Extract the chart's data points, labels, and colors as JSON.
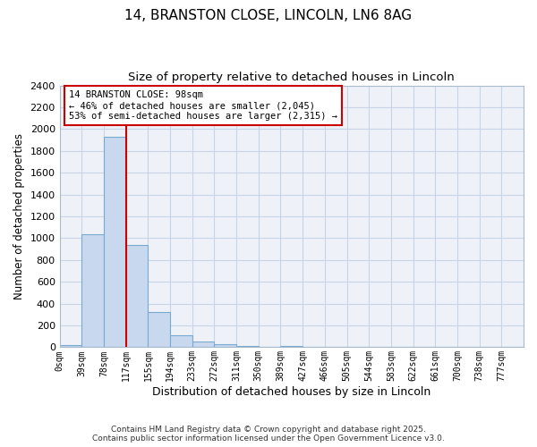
{
  "title_line1": "14, BRANSTON CLOSE, LINCOLN, LN6 8AG",
  "title_line2": "Size of property relative to detached houses in Lincoln",
  "xlabel": "Distribution of detached houses by size in Lincoln",
  "ylabel": "Number of detached properties",
  "bar_labels": [
    "0sqm",
    "39sqm",
    "78sqm",
    "117sqm",
    "155sqm",
    "194sqm",
    "233sqm",
    "272sqm",
    "311sqm",
    "350sqm",
    "389sqm",
    "427sqm",
    "466sqm",
    "505sqm",
    "544sqm",
    "583sqm",
    "622sqm",
    "661sqm",
    "700sqm",
    "738sqm",
    "777sqm"
  ],
  "bar_values": [
    20,
    1035,
    1930,
    935,
    325,
    110,
    55,
    30,
    15,
    0,
    10,
    0,
    0,
    0,
    0,
    0,
    0,
    0,
    0,
    0,
    0
  ],
  "bar_color": "#c8d8ee",
  "bar_edge_color": "#7aaad0",
  "property_line_x": 3.0,
  "annotation_text": "14 BRANSTON CLOSE: 98sqm\n← 46% of detached houses are smaller (2,045)\n53% of semi-detached houses are larger (2,315) →",
  "annotation_box_color": "#ffffff",
  "annotation_box_edge": "#cc0000",
  "red_line_color": "#cc0000",
  "ylim": [
    0,
    2400
  ],
  "yticks": [
    0,
    200,
    400,
    600,
    800,
    1000,
    1200,
    1400,
    1600,
    1800,
    2000,
    2200,
    2400
  ],
  "grid_color": "#c8d4e8",
  "bg_color": "#ffffff",
  "plot_bg_color": "#eef2f8",
  "footer": "Contains HM Land Registry data © Crown copyright and database right 2025.\nContains public sector information licensed under the Open Government Licence v3.0."
}
